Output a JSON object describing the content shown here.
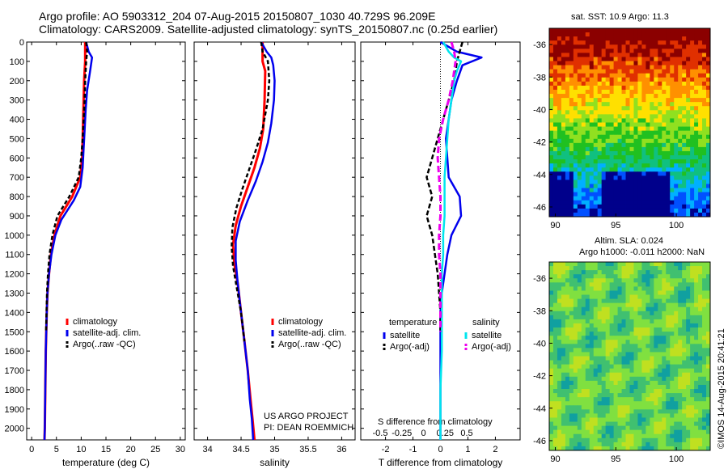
{
  "header": {
    "line1": "Argo profile: AO 5903312_204 07-Aug-2015 20150807_1030 40.729S 96.209E",
    "line2": "Climatology: CARS2009. Satellite-adjusted climatology: synTS_20150807.nc (0.25d earlier)"
  },
  "project": {
    "line1": "US ARGO PROJECT",
    "line2": "PI: DEAN ROEMMICH"
  },
  "colors": {
    "climatology": "#ff0000",
    "satellite": "#0000ee",
    "argo": "#000000",
    "sal_satellite": "#00e5ee",
    "sal_argo": "#ee00ee"
  },
  "chart_data": [
    {
      "type": "line",
      "panel": "temperature",
      "xlabel": "temperature (deg C)",
      "ylabel": "",
      "xlim": [
        -1,
        31
      ],
      "xticks": [
        "0",
        "5",
        "10",
        "15",
        "20",
        "25",
        "30"
      ],
      "ylim": [
        2060,
        0
      ],
      "yticks": [
        "0",
        "100",
        "200",
        "300",
        "400",
        "500",
        "600",
        "700",
        "800",
        "900",
        "1000",
        "1100",
        "1200",
        "1300",
        "1400",
        "1500",
        "1600",
        "1700",
        "1800",
        "1900",
        "2000"
      ],
      "legend": [
        "climatology",
        "satellite-adj. clim.",
        "Argo(..raw -QC)"
      ],
      "legend_position": "lower-right",
      "series": [
        {
          "name": "climatology",
          "points": [
            [
              10.8,
              0
            ],
            [
              10.8,
              100
            ],
            [
              10.6,
              200
            ],
            [
              10.5,
              300
            ],
            [
              10.4,
              400
            ],
            [
              10.3,
              500
            ],
            [
              10.2,
              600
            ],
            [
              9.8,
              700
            ],
            [
              8.2,
              800
            ],
            [
              5.8,
              900
            ],
            [
              4.6,
              1000
            ],
            [
              3.9,
              1100
            ],
            [
              3.5,
              1200
            ],
            [
              3.2,
              1300
            ],
            [
              3.05,
              1400
            ],
            [
              2.95,
              1500
            ],
            [
              2.85,
              1600
            ],
            [
              2.8,
              1700
            ],
            [
              2.75,
              1800
            ],
            [
              2.7,
              1900
            ],
            [
              2.65,
              2000
            ],
            [
              2.6,
              2060
            ]
          ]
        },
        {
          "name": "satellite-adj. clim.",
          "points": [
            [
              11.0,
              0
            ],
            [
              11.5,
              50
            ],
            [
              12.2,
              80
            ],
            [
              11.8,
              150
            ],
            [
              11.2,
              250
            ],
            [
              10.9,
              350
            ],
            [
              10.7,
              450
            ],
            [
              10.5,
              550
            ],
            [
              10.3,
              650
            ],
            [
              9.8,
              750
            ],
            [
              8.5,
              820
            ],
            [
              6.0,
              920
            ],
            [
              4.8,
              1000
            ],
            [
              4.0,
              1100
            ],
            [
              3.5,
              1200
            ],
            [
              3.2,
              1300
            ],
            [
              3.05,
              1400
            ],
            [
              2.95,
              1500
            ],
            [
              2.85,
              1600
            ],
            [
              2.8,
              1700
            ],
            [
              2.75,
              1800
            ],
            [
              2.7,
              1900
            ],
            [
              2.65,
              2000
            ],
            [
              2.6,
              2060
            ]
          ]
        },
        {
          "name": "Argo(..raw -QC)",
          "points": [
            [
              11.0,
              0
            ],
            [
              11.2,
              50
            ],
            [
              11.0,
              100
            ],
            [
              10.8,
              200
            ],
            [
              10.7,
              300
            ],
            [
              10.5,
              400
            ],
            [
              10.3,
              500
            ],
            [
              10.0,
              600
            ],
            [
              9.5,
              700
            ],
            [
              7.6,
              800
            ],
            [
              5.2,
              900
            ],
            [
              4.2,
              1000
            ],
            [
              3.6,
              1100
            ],
            [
              3.3,
              1200
            ],
            [
              3.1,
              1300
            ],
            [
              3.0,
              1400
            ],
            [
              2.9,
              1500
            ]
          ]
        }
      ]
    },
    {
      "type": "line",
      "panel": "salinity",
      "xlabel": "salinity",
      "ylabel": "",
      "xlim": [
        33.8,
        36.2
      ],
      "xticks": [
        "34",
        "34.5",
        "35",
        "35.5",
        "36"
      ],
      "legend": [
        "climatology",
        "satellite-adj. clim.",
        "Argo(..raw -QC)"
      ],
      "legend_position": "lower-right",
      "series": [
        {
          "name": "climatology",
          "points": [
            [
              34.82,
              0
            ],
            [
              34.82,
              100
            ],
            [
              34.86,
              150
            ],
            [
              34.85,
              300
            ],
            [
              34.83,
              450
            ],
            [
              34.78,
              550
            ],
            [
              34.7,
              650
            ],
            [
              34.6,
              750
            ],
            [
              34.5,
              850
            ],
            [
              34.42,
              950
            ],
            [
              34.38,
              1050
            ],
            [
              34.4,
              1150
            ],
            [
              34.45,
              1250
            ],
            [
              34.5,
              1400
            ],
            [
              34.55,
              1550
            ],
            [
              34.6,
              1700
            ],
            [
              34.64,
              1850
            ],
            [
              34.67,
              1950
            ],
            [
              34.7,
              2060
            ]
          ]
        },
        {
          "name": "satellite-adj. clim.",
          "points": [
            [
              34.8,
              0
            ],
            [
              34.88,
              50
            ],
            [
              34.95,
              80
            ],
            [
              34.98,
              120
            ],
            [
              35.0,
              200
            ],
            [
              34.99,
              300
            ],
            [
              34.95,
              420
            ],
            [
              34.9,
              520
            ],
            [
              34.82,
              620
            ],
            [
              34.72,
              720
            ],
            [
              34.6,
              820
            ],
            [
              34.48,
              930
            ],
            [
              34.42,
              1030
            ],
            [
              34.42,
              1130
            ],
            [
              34.45,
              1250
            ],
            [
              34.5,
              1400
            ],
            [
              34.55,
              1550
            ],
            [
              34.6,
              1700
            ],
            [
              34.63,
              1850
            ],
            [
              34.66,
              1950
            ],
            [
              34.68,
              2060
            ]
          ]
        },
        {
          "name": "Argo(..raw -QC)",
          "points": [
            [
              34.8,
              0
            ],
            [
              34.82,
              50
            ],
            [
              34.9,
              100
            ],
            [
              34.92,
              200
            ],
            [
              34.9,
              300
            ],
            [
              34.82,
              450
            ],
            [
              34.72,
              560
            ],
            [
              34.62,
              660
            ],
            [
              34.52,
              760
            ],
            [
              34.43,
              860
            ],
            [
              34.37,
              960
            ],
            [
              34.36,
              1060
            ],
            [
              34.38,
              1160
            ],
            [
              34.43,
              1260
            ],
            [
              34.5,
              1400
            ],
            [
              34.55,
              1550
            ]
          ]
        }
      ]
    },
    {
      "type": "line",
      "panel": "difference",
      "xlabel": "T difference from climatology",
      "xlabel_top": "S difference from climatology",
      "ylabel": "",
      "xlim": [
        -2.9,
        2.9
      ],
      "xticks": [
        "-2",
        "-1",
        "0",
        "1",
        "2"
      ],
      "xticks_top": [
        "-0.5",
        "-0.25",
        "0",
        "0.25",
        "0.5"
      ],
      "legend_groups": [
        "temperature",
        "salinity"
      ],
      "legend": [
        "satellite",
        "Argo(-adj)",
        "satellite",
        "Argo(-adj)"
      ],
      "legend_position": "lower-right",
      "series": [
        {
          "name": "satellite",
          "group": "temperature",
          "points": [
            [
              0,
              0
            ],
            [
              0.6,
              50
            ],
            [
              1.5,
              80
            ],
            [
              0.8,
              120
            ],
            [
              0.6,
              200
            ],
            [
              0.4,
              300
            ],
            [
              0.3,
              400
            ],
            [
              0.2,
              500
            ],
            [
              0.25,
              600
            ],
            [
              0.3,
              700
            ],
            [
              0.7,
              800
            ],
            [
              0.75,
              900
            ],
            [
              0.4,
              1000
            ],
            [
              0.25,
              1100
            ],
            [
              0.15,
              1200
            ],
            [
              0.05,
              1300
            ],
            [
              0,
              1400
            ],
            [
              0,
              1500
            ],
            [
              0,
              1600
            ],
            [
              0,
              1700
            ],
            [
              0,
              1800
            ],
            [
              0,
              1900
            ],
            [
              0,
              2000
            ],
            [
              0,
              2060
            ]
          ]
        },
        {
          "name": "Argo(-adj)",
          "group": "temperature",
          "points": [
            [
              0.8,
              0
            ],
            [
              0.7,
              50
            ],
            [
              0.6,
              100
            ],
            [
              0.5,
              200
            ],
            [
              0.3,
              300
            ],
            [
              0.1,
              400
            ],
            [
              -0.1,
              500
            ],
            [
              -0.3,
              600
            ],
            [
              -0.5,
              700
            ],
            [
              -0.3,
              800
            ],
            [
              -0.4,
              850
            ],
            [
              -0.5,
              900
            ],
            [
              -0.3,
              1000
            ],
            [
              -0.2,
              1100
            ],
            [
              -0.1,
              1200
            ],
            [
              -0.05,
              1300
            ],
            [
              0,
              1400
            ],
            [
              0,
              1500
            ]
          ]
        },
        {
          "name": "satellite",
          "group": "salinity",
          "points": [
            [
              0.1,
              0
            ],
            [
              0.3,
              50
            ],
            [
              0.5,
              80
            ],
            [
              0.75,
              100
            ],
            [
              0.6,
              150
            ],
            [
              0.5,
              200
            ],
            [
              0.4,
              300
            ],
            [
              0.3,
              400
            ],
            [
              0.25,
              500
            ],
            [
              0.2,
              600
            ],
            [
              0.15,
              700
            ],
            [
              0.15,
              800
            ],
            [
              0.15,
              900
            ],
            [
              0.1,
              1000
            ],
            [
              0.1,
              1100
            ],
            [
              0.05,
              1200
            ],
            [
              0.05,
              1400
            ],
            [
              0.05,
              1600
            ],
            [
              0,
              1800
            ],
            [
              0,
              2060
            ]
          ]
        },
        {
          "name": "Argo(-adj)",
          "group": "salinity",
          "points": [
            [
              0.4,
              0
            ],
            [
              0.5,
              50
            ],
            [
              0.55,
              100
            ],
            [
              0.45,
              200
            ],
            [
              0.3,
              300
            ],
            [
              0.1,
              400
            ],
            [
              -0.05,
              500
            ],
            [
              -0.1,
              600
            ],
            [
              -0.05,
              700
            ],
            [
              0,
              800
            ],
            [
              0,
              900
            ],
            [
              -0.05,
              1000
            ],
            [
              -0.05,
              1100
            ],
            [
              0,
              1200
            ],
            [
              0,
              1400
            ],
            [
              0,
              1500
            ]
          ]
        }
      ]
    },
    {
      "type": "heatmap",
      "panel": "sst-map",
      "title": "sat. SST: 10.9  Argo: 11.3",
      "xticks": [
        "90",
        "95",
        "100"
      ],
      "yticks": [
        "-36",
        "-38",
        "-40",
        "-42",
        "-44",
        "-46"
      ],
      "xlim": [
        89.5,
        102.8
      ],
      "ylim": [
        -46.6,
        -35.0
      ],
      "colormap": [
        "#00008b",
        "#0050ff",
        "#00b0ff",
        "#10c080",
        "#20c020",
        "#90e020",
        "#ffe000",
        "#ff9000",
        "#e03000",
        "#8b0000"
      ]
    },
    {
      "type": "heatmap",
      "panel": "sla-map",
      "title": "Altim. SLA: 0.024",
      "subtitle": "Argo h1000: -0.011 h2000: NaN",
      "xticks": [
        "90",
        "95",
        "100"
      ],
      "yticks": [
        "-36",
        "-38",
        "-40",
        "-42",
        "-44",
        "-46"
      ],
      "xlim": [
        89.5,
        102.8
      ],
      "ylim": [
        -46.6,
        -35.0
      ],
      "colormap": [
        "#10a0a0",
        "#40c070",
        "#80e040",
        "#c0e020",
        "#ffd000",
        "#ffa000"
      ]
    }
  ],
  "stamp": "©IMOS 14-Aug-2015 20:41:21"
}
